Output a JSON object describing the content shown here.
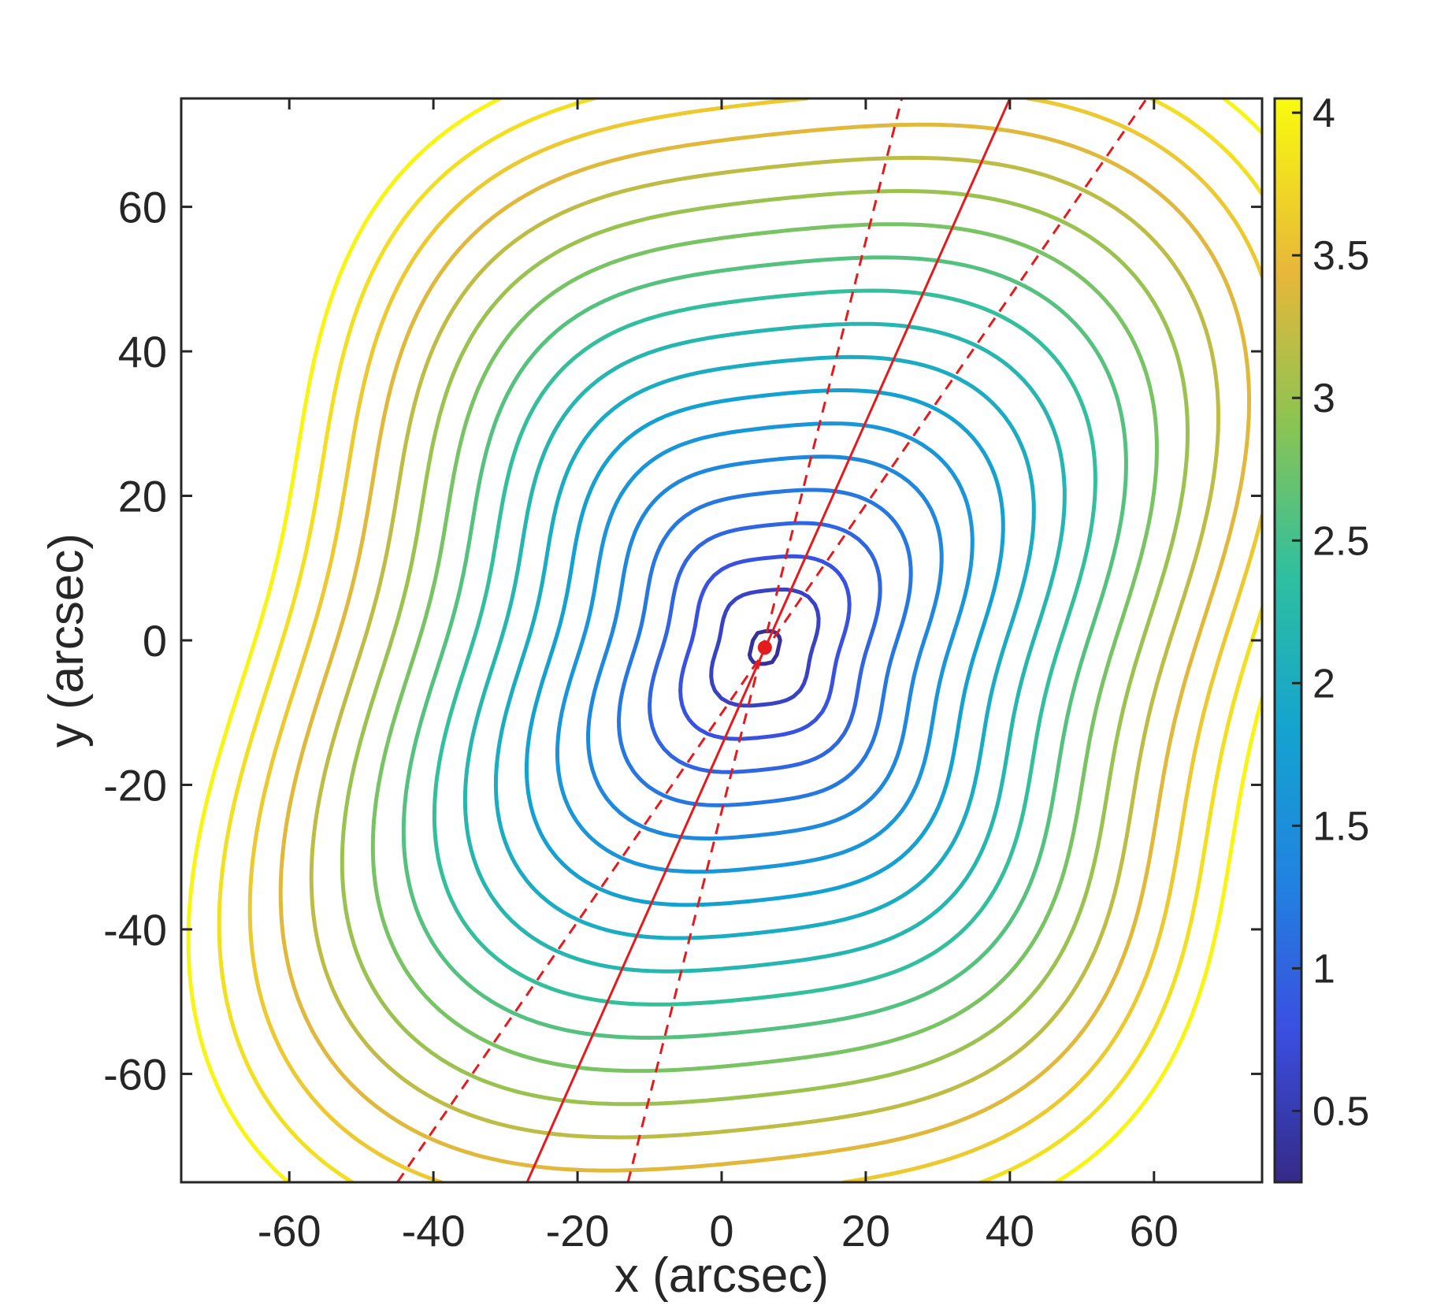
{
  "chart_data": {
    "type": "contour",
    "xlabel": "x (arcsec)",
    "ylabel": "y (arcsec)",
    "xlim": [
      -75,
      75
    ],
    "ylim": [
      -75,
      75
    ],
    "xticks": [
      -60,
      -40,
      -20,
      0,
      20,
      40,
      60
    ],
    "yticks": [
      -60,
      -40,
      -20,
      0,
      20,
      40,
      60
    ],
    "tick_labels_x": [
      "-60",
      "-40",
      "-20",
      "0",
      "20",
      "40",
      "60"
    ],
    "tick_labels_y": [
      "-60",
      "-40",
      "-20",
      "0",
      "20",
      "40",
      "60"
    ],
    "grid": false,
    "colormap": "parula",
    "colorbar": {
      "range": [
        0.25,
        4.05
      ],
      "ticks": [
        0.5,
        1,
        1.5,
        2,
        2.5,
        3,
        3.5,
        4
      ],
      "tick_labels": [
        "0.5",
        "1",
        "1.5",
        "2",
        "2.5",
        "3",
        "3.5",
        "4"
      ]
    },
    "contour_levels": [
      0.35,
      0.6,
      0.8,
      1.0,
      1.2,
      1.4,
      1.6,
      1.8,
      2.0,
      2.2,
      2.4,
      2.6,
      2.8,
      3.0,
      3.2,
      3.4,
      3.6,
      3.8,
      4.0
    ],
    "source_point": {
      "x": 6,
      "y": -1,
      "color": "#e41a1c"
    },
    "lines": [
      {
        "style": "solid",
        "color": "#e41a1c",
        "from": [
          -27,
          -75
        ],
        "to": [
          40,
          75
        ]
      },
      {
        "style": "dashed",
        "color": "#e41a1c",
        "from": [
          -45,
          -75
        ],
        "to": [
          59,
          75
        ]
      },
      {
        "style": "dashed",
        "color": "#e41a1c",
        "from": [
          -13,
          -75
        ],
        "to": [
          25,
          75
        ]
      }
    ]
  }
}
